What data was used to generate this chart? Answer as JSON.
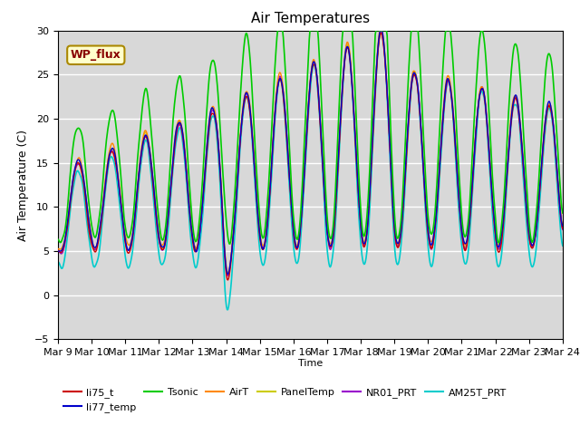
{
  "title": "Air Temperatures",
  "xlabel": "Time",
  "ylabel": "Air Temperature (C)",
  "ylim": [
    -5,
    30
  ],
  "bg_color": "#d8d8d8",
  "series": {
    "li75_t": {
      "color": "#cc0000",
      "lw": 1.0,
      "zorder": 3
    },
    "li77_temp": {
      "color": "#0000cc",
      "lw": 1.0,
      "zorder": 3
    },
    "Tsonic": {
      "color": "#00cc00",
      "lw": 1.2,
      "zorder": 4
    },
    "AirT": {
      "color": "#ff8800",
      "lw": 1.0,
      "zorder": 3
    },
    "PanelTemp": {
      "color": "#cccc00",
      "lw": 1.0,
      "zorder": 3
    },
    "NR01_PRT": {
      "color": "#9900cc",
      "lw": 1.0,
      "zorder": 3
    },
    "AM25T_PRT": {
      "color": "#00cccc",
      "lw": 1.2,
      "zorder": 2
    }
  },
  "xtick_labels": [
    "Mar 9",
    "Mar 10",
    "Mar 11",
    "Mar 12",
    "Mar 13",
    "Mar 14",
    "Mar 15",
    "Mar 16",
    "Mar 17",
    "Mar 18",
    "Mar 19",
    "Mar 20",
    "Mar 21",
    "Mar 22",
    "Mar 23",
    "Mar 24"
  ],
  "annotation_text": "WP_flux",
  "annotation_color": "#880000",
  "annotation_bg": "#ffffcc",
  "annotation_border": "#aa8800",
  "yticks": [
    -5,
    0,
    5,
    10,
    15,
    20,
    25,
    30
  ],
  "legend_row1": [
    "li75_t",
    "li77_temp",
    "Tsonic",
    "AirT",
    "PanelTemp",
    "NR01_PRT"
  ],
  "legend_row2": [
    "AM25T_PRT"
  ]
}
